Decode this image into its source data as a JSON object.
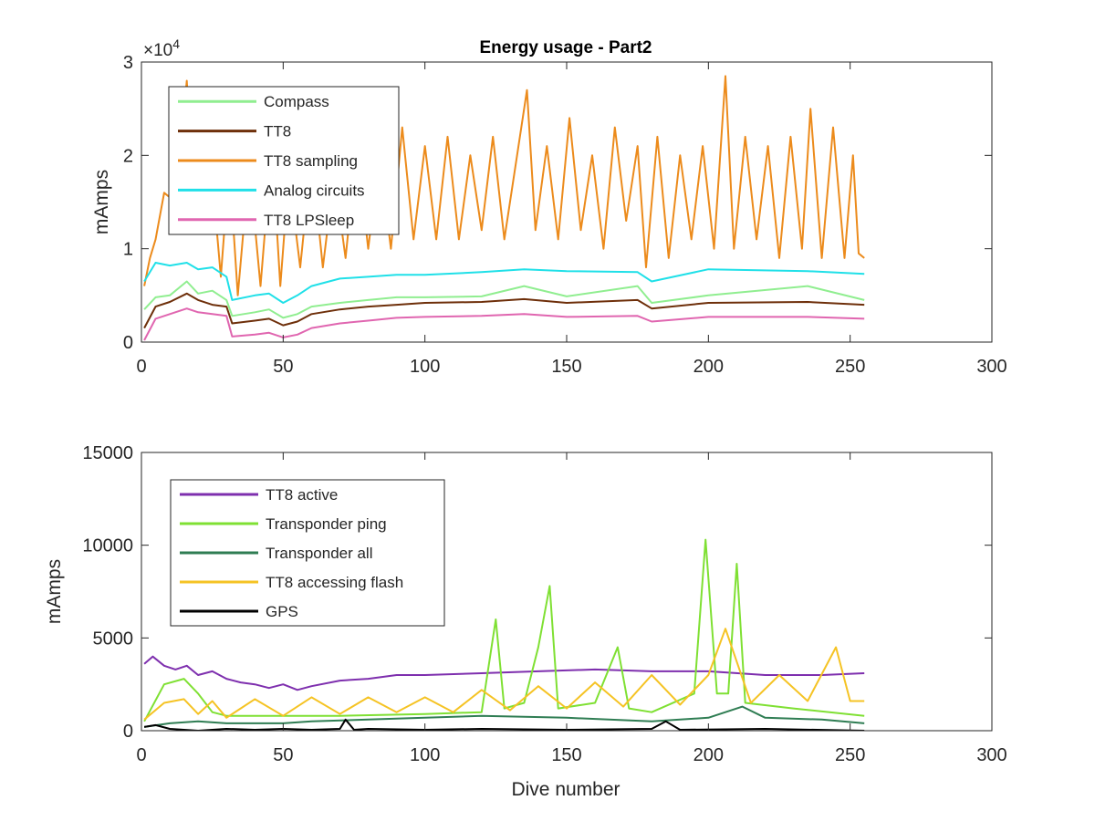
{
  "figure": {
    "title": "Energy usage - Part2",
    "xlabel": "Dive number"
  },
  "chart_data": [
    {
      "type": "line",
      "title": "Energy usage - Part2",
      "xlabel": "",
      "ylabel": "mAmps",
      "xlim": [
        0,
        300
      ],
      "ylim": [
        0,
        30000
      ],
      "xticks": [
        "0",
        "50",
        "100",
        "150",
        "200",
        "250",
        "300"
      ],
      "yticks": [
        "0",
        "1",
        "2",
        "3"
      ],
      "y_exponent_label": "×10",
      "y_exponent_power": "4",
      "grid": false,
      "legend_position": "top-left",
      "series": [
        {
          "name": "Compass",
          "color": "#90ee90",
          "x": [
            1,
            5,
            10,
            16,
            20,
            25,
            30,
            32,
            40,
            45,
            50,
            55,
            60,
            70,
            80,
            90,
            100,
            120,
            135,
            150,
            175,
            180,
            200,
            235,
            255
          ],
          "values": [
            3500,
            4800,
            5000,
            6500,
            5200,
            5500,
            4500,
            2800,
            3200,
            3500,
            2600,
            3000,
            3800,
            4200,
            4500,
            4800,
            4800,
            4900,
            6000,
            4900,
            6000,
            4200,
            5000,
            6000,
            4500
          ]
        },
        {
          "name": "TT8",
          "color": "#6e2f0a",
          "x": [
            1,
            5,
            10,
            16,
            20,
            25,
            30,
            32,
            40,
            45,
            50,
            55,
            60,
            70,
            80,
            90,
            100,
            120,
            135,
            150,
            175,
            180,
            200,
            235,
            255
          ],
          "values": [
            1500,
            3800,
            4300,
            5200,
            4500,
            4000,
            3800,
            2000,
            2300,
            2500,
            1800,
            2200,
            3000,
            3500,
            3800,
            4000,
            4200,
            4300,
            4600,
            4200,
            4500,
            3600,
            4200,
            4300,
            4000
          ]
        },
        {
          "name": "TT8 sampling",
          "color": "#ec8b1c",
          "x": [
            1,
            3,
            5,
            8,
            12,
            16,
            18,
            20,
            24,
            28,
            31,
            34,
            38,
            42,
            46,
            49,
            52,
            56,
            60,
            64,
            68,
            72,
            76,
            80,
            84,
            88,
            92,
            96,
            100,
            104,
            108,
            112,
            116,
            120,
            124,
            128,
            132,
            136,
            139,
            143,
            147,
            151,
            155,
            159,
            163,
            167,
            171,
            175,
            178,
            182,
            186,
            190,
            194,
            198,
            202,
            206,
            209,
            213,
            217,
            221,
            225,
            229,
            233,
            236,
            240,
            244,
            248,
            251,
            253,
            255
          ],
          "values": [
            6000,
            9000,
            11000,
            16000,
            15000,
            28000,
            17000,
            12000,
            21000,
            7000,
            19000,
            5000,
            19000,
            6000,
            21000,
            6000,
            18000,
            8000,
            20000,
            8000,
            18000,
            9000,
            21000,
            10000,
            20000,
            10000,
            23000,
            11000,
            21000,
            11000,
            22000,
            11000,
            20000,
            12000,
            22000,
            11000,
            19000,
            27000,
            12000,
            21000,
            11000,
            24000,
            12000,
            20000,
            10000,
            23000,
            13000,
            21000,
            8000,
            22000,
            9000,
            20000,
            11000,
            21000,
            10000,
            28500,
            10000,
            22000,
            11000,
            21000,
            9000,
            22000,
            10000,
            25000,
            9000,
            23000,
            9000,
            20000,
            9500,
            9000
          ]
        },
        {
          "name": "Analog circuits",
          "color": "#20e0e8",
          "x": [
            1,
            5,
            10,
            16,
            20,
            25,
            30,
            32,
            40,
            45,
            50,
            55,
            60,
            70,
            80,
            90,
            100,
            120,
            135,
            150,
            175,
            180,
            200,
            235,
            255
          ],
          "values": [
            6500,
            8500,
            8200,
            8500,
            7800,
            8000,
            7000,
            4500,
            5000,
            5200,
            4200,
            5000,
            6000,
            6800,
            7000,
            7200,
            7200,
            7500,
            7800,
            7600,
            7500,
            6500,
            7800,
            7600,
            7300
          ]
        },
        {
          "name": "TT8 LPSleep",
          "color": "#e066b0",
          "x": [
            1,
            5,
            10,
            16,
            20,
            25,
            30,
            32,
            40,
            45,
            50,
            55,
            60,
            70,
            80,
            90,
            100,
            120,
            135,
            150,
            175,
            180,
            200,
            235,
            255
          ],
          "values": [
            200,
            2500,
            3000,
            3600,
            3200,
            3000,
            2800,
            600,
            800,
            1000,
            500,
            800,
            1500,
            2000,
            2300,
            2600,
            2700,
            2800,
            3000,
            2700,
            2800,
            2200,
            2700,
            2700,
            2500
          ]
        }
      ]
    },
    {
      "type": "line",
      "title": "",
      "xlabel": "Dive number",
      "ylabel": "mAmps",
      "xlim": [
        0,
        300
      ],
      "ylim": [
        0,
        15000
      ],
      "xticks": [
        "0",
        "50",
        "100",
        "150",
        "200",
        "250",
        "300"
      ],
      "yticks": [
        "0",
        "5000",
        "10000",
        "15000"
      ],
      "grid": false,
      "legend_position": "top-left",
      "series": [
        {
          "name": "TT8 active",
          "color": "#7e2fae",
          "x": [
            1,
            4,
            8,
            12,
            16,
            20,
            25,
            30,
            35,
            40,
            45,
            50,
            55,
            60,
            70,
            80,
            90,
            100,
            120,
            140,
            160,
            180,
            200,
            220,
            240,
            255
          ],
          "values": [
            3600,
            4000,
            3500,
            3300,
            3500,
            3000,
            3200,
            2800,
            2600,
            2500,
            2300,
            2500,
            2200,
            2400,
            2700,
            2800,
            3000,
            3000,
            3100,
            3200,
            3300,
            3200,
            3200,
            3000,
            3000,
            3100
          ]
        },
        {
          "name": "Transponder ping",
          "color": "#7fe033",
          "x": [
            1,
            8,
            15,
            20,
            25,
            30,
            50,
            70,
            100,
            120,
            125,
            128,
            135,
            140,
            144,
            147,
            160,
            168,
            172,
            180,
            195,
            199,
            203,
            207,
            210,
            213,
            230,
            255
          ],
          "values": [
            500,
            2500,
            2800,
            2000,
            1000,
            800,
            800,
            800,
            900,
            1000,
            6000,
            1200,
            1500,
            4500,
            7800,
            1200,
            1500,
            4500,
            1200,
            1000,
            2000,
            10300,
            2000,
            2000,
            9000,
            1500,
            1200,
            800
          ]
        },
        {
          "name": "Transponder all",
          "color": "#2f7d53",
          "x": [
            1,
            10,
            20,
            30,
            50,
            60,
            80,
            100,
            120,
            150,
            180,
            200,
            212,
            220,
            240,
            255
          ],
          "values": [
            200,
            400,
            500,
            400,
            400,
            500,
            600,
            700,
            800,
            700,
            500,
            700,
            1300,
            700,
            600,
            400
          ]
        },
        {
          "name": "TT8 accessing flash",
          "color": "#f5c324",
          "x": [
            1,
            8,
            15,
            20,
            25,
            30,
            40,
            50,
            60,
            70,
            80,
            90,
            100,
            110,
            120,
            130,
            140,
            150,
            160,
            170,
            180,
            190,
            200,
            206,
            215,
            225,
            235,
            245,
            250,
            255
          ],
          "values": [
            600,
            1500,
            1700,
            900,
            1600,
            700,
            1700,
            800,
            1800,
            900,
            1800,
            1000,
            1800,
            1000,
            2200,
            1100,
            2400,
            1200,
            2600,
            1300,
            3000,
            1400,
            3000,
            5500,
            1500,
            3000,
            1600,
            4500,
            1600,
            1600
          ]
        },
        {
          "name": "GPS",
          "color": "#000000",
          "x": [
            1,
            5,
            10,
            15,
            20,
            30,
            40,
            50,
            60,
            70,
            72,
            75,
            80,
            100,
            120,
            150,
            180,
            185,
            190,
            220,
            255
          ],
          "values": [
            200,
            300,
            100,
            50,
            0,
            100,
            50,
            100,
            50,
            100,
            600,
            50,
            100,
            50,
            100,
            50,
            100,
            500,
            50,
            100,
            0
          ]
        }
      ]
    }
  ]
}
